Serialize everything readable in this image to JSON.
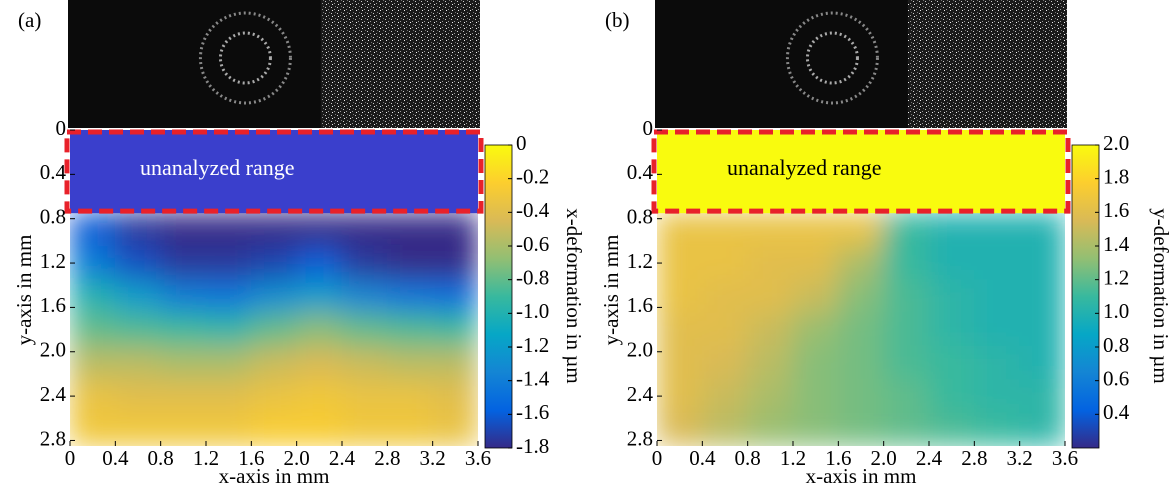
{
  "chart_data": [
    {
      "type": "heatmap",
      "panel_label": "(a)",
      "annotation": "unanalyzed range",
      "xlabel": "x-axis in mm",
      "ylabel": "y-axis in mm",
      "colorbar_label": "x-deformation in µm",
      "xlim": [
        0,
        3.6
      ],
      "ylim": [
        0,
        2.85
      ],
      "xticks": [
        0,
        0.4,
        0.8,
        1.2,
        1.6,
        {
          "value": 2,
          "label": "2.0"
        },
        2.4,
        2.8,
        3.2,
        3.6
      ],
      "yticks": [
        0,
        0.4,
        0.8,
        1.2,
        1.6,
        {
          "value": 2,
          "label": "2.0"
        },
        2.4,
        2.8
      ],
      "clim": [
        -1.8,
        0
      ],
      "cticks": [
        0,
        -0.2,
        -0.4,
        -0.6,
        -0.8,
        {
          "value": -1,
          "label": "-1.0"
        },
        -1.2,
        -1.4,
        -1.6,
        -1.8
      ],
      "colormap": [
        "#352a87",
        "#0363e1",
        "#1485d4",
        "#06a7c6",
        "#38b99e",
        "#92bf73",
        "#d9ba56",
        "#fcce2e",
        "#f9fb0e"
      ],
      "x": [
        0.2,
        0.6,
        1.0,
        1.4,
        1.8,
        2.2,
        2.6,
        3.0,
        3.4
      ],
      "y": [
        0.9,
        1.2,
        1.5,
        1.8,
        2.1,
        2.4,
        2.7
      ],
      "z": [
        [
          -1.6,
          -1.75,
          -1.8,
          -1.8,
          -1.8,
          -1.8,
          -1.8,
          -1.8,
          -1.8
        ],
        [
          -1.4,
          -1.65,
          -1.75,
          -1.75,
          -1.7,
          -1.6,
          -1.75,
          -1.8,
          -1.8
        ],
        [
          -1.0,
          -1.2,
          -1.4,
          -1.45,
          -1.3,
          -1.2,
          -1.35,
          -1.45,
          -1.5
        ],
        [
          -0.8,
          -0.85,
          -0.9,
          -0.95,
          -0.8,
          -0.7,
          -0.8,
          -0.85,
          -0.9
        ],
        [
          -0.55,
          -0.55,
          -0.6,
          -0.6,
          -0.5,
          -0.45,
          -0.5,
          -0.55,
          -0.55
        ],
        [
          -0.35,
          -0.4,
          -0.4,
          -0.4,
          -0.35,
          -0.3,
          -0.35,
          -0.35,
          -0.4
        ],
        [
          -0.3,
          -0.3,
          -0.3,
          -0.3,
          -0.25,
          -0.25,
          -0.3,
          -0.3,
          -0.35
        ]
      ]
    },
    {
      "type": "heatmap",
      "panel_label": "(b)",
      "annotation": "unanalyzed range",
      "xlabel": "x-axis in mm",
      "ylabel": "y-axis in mm",
      "colorbar_label": "y-deformation in µm",
      "xlim": [
        0,
        3.6
      ],
      "ylim": [
        0,
        2.85
      ],
      "xticks": [
        0,
        0.4,
        0.8,
        1.2,
        1.6,
        {
          "value": 2,
          "label": "2.0"
        },
        2.4,
        2.8,
        3.2,
        3.6
      ],
      "yticks": [
        0,
        0.4,
        0.8,
        1.2,
        1.6,
        {
          "value": 2,
          "label": "2.0"
        },
        2.4,
        2.8
      ],
      "clim": [
        0.2,
        2.0
      ],
      "cticks": [
        {
          "value": 2,
          "label": "2.0"
        },
        1.8,
        1.6,
        1.4,
        1.2,
        {
          "value": 1,
          "label": "1.0"
        },
        0.8,
        0.6,
        0.4
      ],
      "colormap": [
        "#352a87",
        "#0363e1",
        "#1485d4",
        "#06a7c6",
        "#38b99e",
        "#92bf73",
        "#d9ba56",
        "#fcce2e",
        "#f9fb0e"
      ],
      "x": [
        0.2,
        0.6,
        1.0,
        1.4,
        1.8,
        2.2,
        2.6,
        3.0,
        3.4
      ],
      "y": [
        0.9,
        1.2,
        1.5,
        1.8,
        2.1,
        2.4,
        2.7
      ],
      "z": [
        [
          1.65,
          1.65,
          1.65,
          1.65,
          1.65,
          1.1,
          1.0,
          1.0,
          1.0
        ],
        [
          1.65,
          1.65,
          1.6,
          1.6,
          1.4,
          1.1,
          1.0,
          1.0,
          1.0
        ],
        [
          1.65,
          1.6,
          1.6,
          1.5,
          1.3,
          1.15,
          1.05,
          1.0,
          1.0
        ],
        [
          1.6,
          1.6,
          1.5,
          1.35,
          1.25,
          1.15,
          1.05,
          1.0,
          1.0
        ],
        [
          1.6,
          1.55,
          1.45,
          1.3,
          1.25,
          1.15,
          1.1,
          1.05,
          1.0
        ],
        [
          1.6,
          1.5,
          1.4,
          1.3,
          1.25,
          1.2,
          1.1,
          1.05,
          1.05
        ],
        [
          1.55,
          1.45,
          1.35,
          1.3,
          1.25,
          1.2,
          1.15,
          1.1,
          1.05
        ]
      ]
    }
  ]
}
